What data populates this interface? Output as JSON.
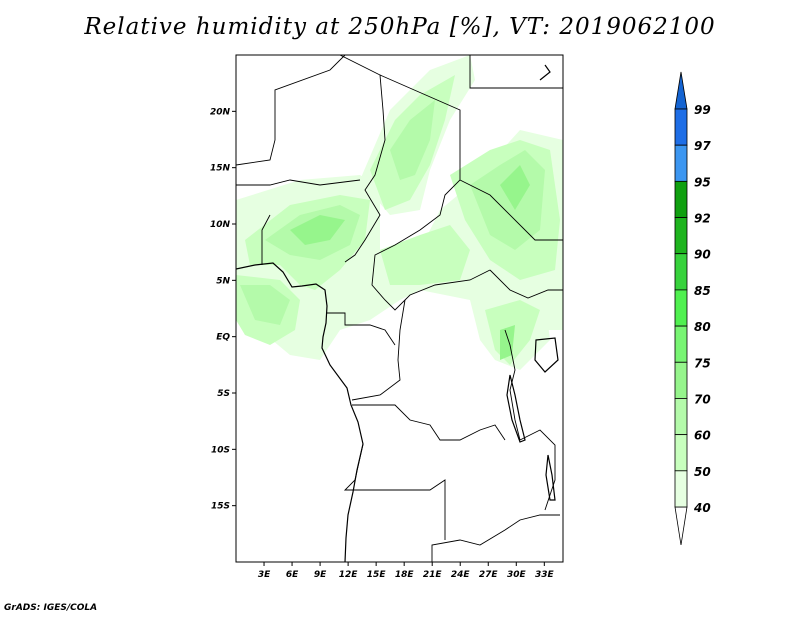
{
  "title": "Relative humidity at 250hPa [%], VT: 2019062100",
  "footer": "GrADS: IGES/COLA",
  "map": {
    "variable": "Relative humidity",
    "level": "250hPa",
    "units": "%",
    "valid_time": "2019062100",
    "lat_ticks": [
      "20N",
      "15N",
      "10N",
      "5N",
      "EQ",
      "5S",
      "10S",
      "15S"
    ],
    "lat_tick_values": [
      20,
      15,
      10,
      5,
      0,
      -5,
      -10,
      -15
    ],
    "lon_ticks": [
      "3E",
      "6E",
      "9E",
      "12E",
      "15E",
      "18E",
      "21E",
      "24E",
      "27E",
      "30E",
      "33E"
    ],
    "lon_tick_values": [
      3,
      6,
      9,
      12,
      15,
      18,
      21,
      24,
      27,
      30,
      33
    ],
    "lon_range": [
      0,
      35
    ],
    "lat_range": [
      -20,
      25
    ]
  },
  "colorbar": {
    "labels": [
      "99",
      "97",
      "95",
      "92",
      "90",
      "85",
      "80",
      "75",
      "70",
      "60",
      "50",
      "40"
    ],
    "segment_colors": [
      "#1e6ee6",
      "#3c96f0",
      "#10a010",
      "#1eb41e",
      "#37d23c",
      "#50f050",
      "#78f573",
      "#96f58c",
      "#b4faaa",
      "#c8ffbe",
      "#e6ffe1"
    ],
    "above_color": "#1464d2",
    "below_color": "#ffffff"
  }
}
